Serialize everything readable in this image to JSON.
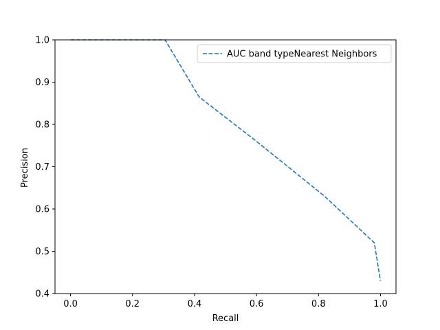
{
  "chart_data": {
    "type": "line",
    "title": "",
    "xlabel": "Recall",
    "ylabel": "Precision",
    "xlim": [
      -0.05,
      1.05
    ],
    "ylim": [
      0.4,
      1.0
    ],
    "xticks": [
      0.0,
      0.2,
      0.4,
      0.6,
      0.8,
      1.0
    ],
    "xtick_labels": [
      "0.0",
      "0.2",
      "0.4",
      "0.6",
      "0.8",
      "1.0"
    ],
    "yticks": [
      0.4,
      0.5,
      0.6,
      0.7,
      0.8,
      0.9,
      1.0
    ],
    "ytick_labels": [
      "0.4",
      "0.5",
      "0.6",
      "0.7",
      "0.8",
      "0.9",
      "1.0"
    ],
    "grid": false,
    "legend_position": "top-right",
    "series": [
      {
        "name": "AUC band typeNearest Neighbors",
        "color": "#1f77b4",
        "style": "dashed",
        "x": [
          0.0,
          0.305,
          0.415,
          0.6,
          0.82,
          0.98,
          1.0
        ],
        "y": [
          1.0,
          1.0,
          0.865,
          0.76,
          0.63,
          0.52,
          0.43
        ]
      }
    ]
  }
}
